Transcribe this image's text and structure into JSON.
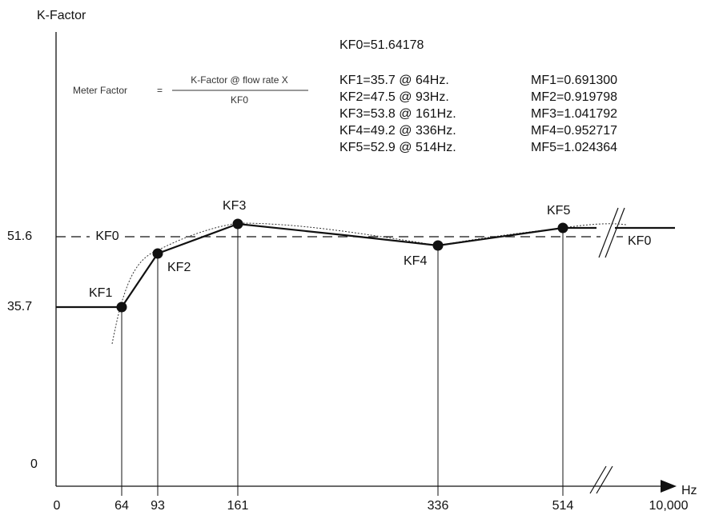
{
  "chart_data": {
    "type": "line",
    "ylabel": "K-Factor",
    "xlabel": "Hz",
    "y_tick_labels": [
      "51.6",
      "35.7",
      "0"
    ],
    "x_tick_labels": [
      "0",
      "64",
      "93",
      "161",
      "336",
      "514",
      "10,000"
    ],
    "x_scale": "non-linear (axis break between 514 and 10,000)",
    "y_axis_break": true,
    "x_axis_break": true,
    "grid": false,
    "legend": "none",
    "kf0_text": "KF0=51.64178",
    "kf0_value": 51.64178,
    "kf0_line_label_left": "KF0",
    "kf0_line_label_right": "KF0",
    "formula": {
      "lhs": "Meter Factor",
      "equals": "=",
      "numerator": "K-Factor @ flow rate X",
      "denominator": "KF0"
    },
    "points": [
      {
        "label": "KF1",
        "x": 64,
        "y": 35.7,
        "text": "KF1=35.7 @ 64Hz.",
        "mf": "MF1=0.691300"
      },
      {
        "label": "KF2",
        "x": 93,
        "y": 47.5,
        "text": "KF2=47.5 @ 93Hz.",
        "mf": "MF2=0.919798"
      },
      {
        "label": "KF3",
        "x": 161,
        "y": 53.8,
        "text": "KF3=53.8 @ 161Hz.",
        "mf": "MF3=1.041792"
      },
      {
        "label": "KF4",
        "x": 336,
        "y": 49.2,
        "text": "KF4=49.2 @ 336Hz.",
        "mf": "MF4=0.952717"
      },
      {
        "label": "KF5",
        "x": 514,
        "y": 52.9,
        "text": "KF5=52.9 @ 514Hz.",
        "mf": "MF5=1.024364"
      }
    ],
    "series": [
      {
        "style": "solid",
        "description": "piecewise linear through points, constant before KF1 and after KF5"
      },
      {
        "style": "dotted",
        "description": "smooth curve through points"
      }
    ]
  }
}
